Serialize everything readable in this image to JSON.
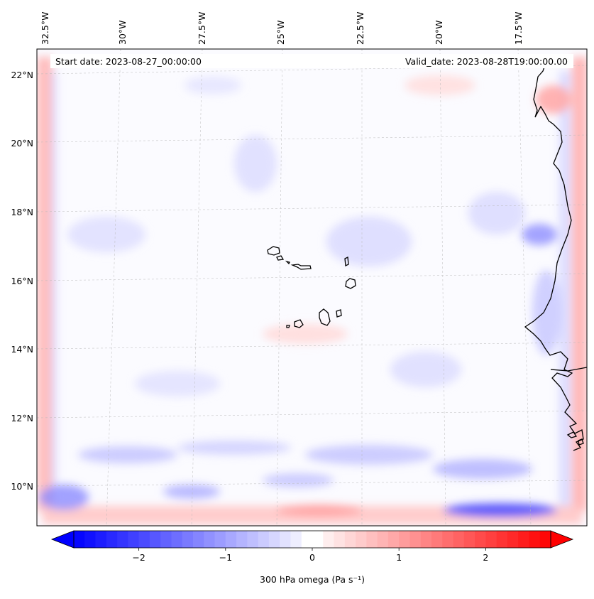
{
  "header": {
    "start_date": "Start date: 2023-08-27_00:00:00",
    "valid_date": "Valid_date: 2023-08-28T19:00:00.00"
  },
  "lon_labels": [
    "32.5°W",
    "30°W",
    "27.5°W",
    "25°W",
    "22.5°W",
    "20°W",
    "17.5°W"
  ],
  "lat_labels": [
    "22°N",
    "20°N",
    "18°N",
    "16°N",
    "14°N",
    "12°N",
    "10°N"
  ],
  "colorbar": {
    "ticks": [
      "−2",
      "−1",
      "0",
      "1",
      "2"
    ],
    "tick_values": [
      -2,
      -1,
      0,
      1,
      2
    ],
    "range": [
      -2.75,
      2.75
    ],
    "steps": 44,
    "label": "300 hPa omega (Pa s⁻¹)",
    "colors": {
      "negative": "#0000ff",
      "zero": "#ffffff",
      "positive": "#ff0000"
    }
  },
  "features": {
    "islands": [
      "Santo Antão",
      "São Vicente",
      "Santa Luzia",
      "São Nicolau",
      "Sal",
      "Boa Vista",
      "Maio",
      "Santiago",
      "Fogo",
      "Brava"
    ],
    "coastline": "West African coast"
  }
}
